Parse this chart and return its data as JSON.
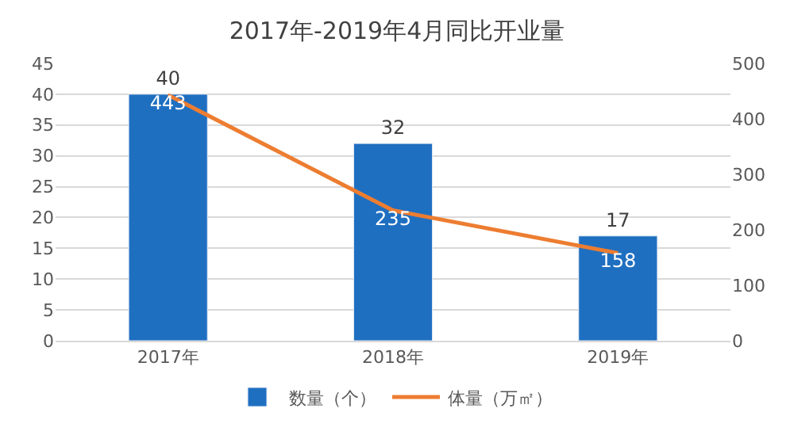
{
  "chart_data": {
    "type": "bar",
    "title": "2017年-2019年4月同比开业量",
    "categories": [
      "2017年",
      "2018年",
      "2019年"
    ],
    "series": [
      {
        "name": "数量（个）",
        "color": "#1f6fc1",
        "values": [
          40,
          32,
          17
        ]
      },
      {
        "name": "体量（万㎡）",
        "type": "line",
        "axis": "y2",
        "color": "#ed7d31",
        "values": [
          443,
          235,
          158
        ]
      }
    ],
    "ylim": [
      0,
      45
    ],
    "yticks": [
      0,
      5,
      10,
      15,
      20,
      25,
      30,
      35,
      40,
      45
    ],
    "y2lim": [
      0,
      500
    ],
    "y2ticks": [
      0,
      100,
      200,
      300,
      400,
      500
    ],
    "data_labels": true,
    "grid": "y",
    "legend": "bottom",
    "marker": "none",
    "line_style": "solid"
  }
}
